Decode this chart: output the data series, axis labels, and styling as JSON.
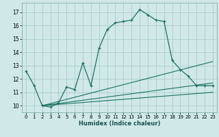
{
  "xlabel": "Humidex (Indice chaleur)",
  "bg_color": "#d0e8e8",
  "grid_color": "#aacccc",
  "line_color": "#1a7060",
  "xlim": [
    -0.5,
    23.5
  ],
  "ylim": [
    9.5,
    17.7
  ],
  "yticks": [
    10,
    11,
    12,
    13,
    14,
    15,
    16,
    17
  ],
  "xticks": [
    0,
    1,
    2,
    3,
    4,
    5,
    6,
    7,
    8,
    9,
    10,
    11,
    12,
    13,
    14,
    15,
    16,
    17,
    18,
    19,
    20,
    21,
    22,
    23
  ],
  "main_line_x": [
    0,
    1,
    2,
    3,
    4,
    5,
    6,
    7,
    8,
    9,
    10,
    11,
    12,
    13,
    14,
    15,
    16,
    17,
    18,
    19,
    20,
    21,
    22,
    23
  ],
  "main_line_y": [
    12.6,
    11.5,
    10.0,
    9.9,
    10.2,
    11.4,
    11.2,
    13.2,
    11.5,
    14.3,
    15.7,
    16.2,
    16.3,
    16.4,
    17.2,
    16.8,
    16.4,
    16.3,
    13.4,
    12.7,
    12.2,
    11.5,
    11.5,
    11.5
  ],
  "line2_x": [
    2,
    23
  ],
  "line2_y": [
    10.0,
    13.3
  ],
  "line3_x": [
    2,
    23
  ],
  "line3_y": [
    10.0,
    11.7
  ],
  "line4_x": [
    2,
    23
  ],
  "line4_y": [
    10.0,
    11.0
  ]
}
